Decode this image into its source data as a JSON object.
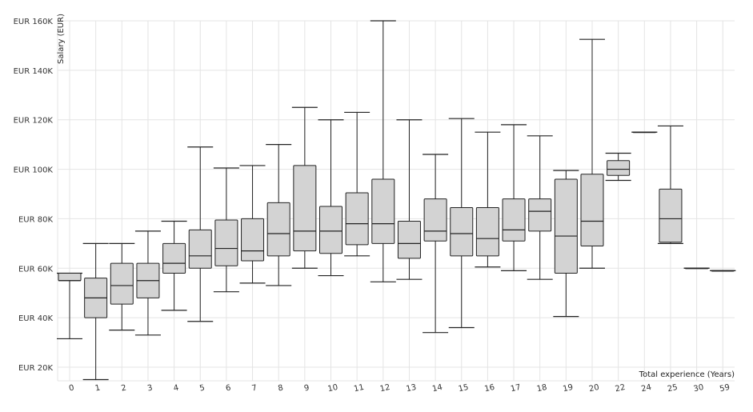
{
  "chart_data": {
    "type": "boxplot",
    "xlabel": "Total experience (Years)",
    "ylabel": "Salary (EUR)",
    "ylim": [
      15000,
      160000
    ],
    "y_ticks": [
      20000,
      40000,
      60000,
      80000,
      100000,
      120000,
      140000,
      160000
    ],
    "y_tick_labels": [
      "EUR 20K",
      "EUR 40K",
      "EUR 60K",
      "EUR 80K",
      "EUR 100K",
      "EUR 120K",
      "EUR 140K",
      "EUR 160K"
    ],
    "grid": true,
    "colors": {
      "box_fill": "#d3d3d3",
      "stroke": "#222222",
      "grid": "#e4e4e4",
      "text": "#333333"
    },
    "categories": [
      "0",
      "1",
      "2",
      "3",
      "4",
      "5",
      "6",
      "7",
      "8",
      "9",
      "10",
      "11",
      "12",
      "13",
      "14",
      "15",
      "16",
      "17",
      "18",
      "19",
      "20",
      "22",
      "24",
      "25",
      "30",
      "59"
    ],
    "boxes": [
      {
        "min": 31500,
        "q1": 55000,
        "median": 55000,
        "q3": 58000,
        "max": 58000
      },
      {
        "min": 15000,
        "q1": 40000,
        "median": 48000,
        "q3": 56000,
        "max": 70000
      },
      {
        "min": 35000,
        "q1": 45500,
        "median": 53000,
        "q3": 62000,
        "max": 70000
      },
      {
        "min": 33000,
        "q1": 48000,
        "median": 55000,
        "q3": 62000,
        "max": 75000
      },
      {
        "min": 43000,
        "q1": 58000,
        "median": 62000,
        "q3": 70000,
        "max": 79000
      },
      {
        "min": 38500,
        "q1": 60000,
        "median": 65000,
        "q3": 75500,
        "max": 109000
      },
      {
        "min": 50500,
        "q1": 61000,
        "median": 68000,
        "q3": 79500,
        "max": 100500
      },
      {
        "min": 54000,
        "q1": 63000,
        "median": 67000,
        "q3": 80000,
        "max": 101500
      },
      {
        "min": 53000,
        "q1": 65000,
        "median": 74000,
        "q3": 86500,
        "max": 110000
      },
      {
        "min": 60000,
        "q1": 67000,
        "median": 75000,
        "q3": 101500,
        "max": 125000
      },
      {
        "min": 57000,
        "q1": 66000,
        "median": 75000,
        "q3": 85000,
        "max": 120000
      },
      {
        "min": 65000,
        "q1": 69500,
        "median": 78000,
        "q3": 90500,
        "max": 123000
      },
      {
        "min": 54500,
        "q1": 70000,
        "median": 78000,
        "q3": 96000,
        "max": 160000
      },
      {
        "min": 55500,
        "q1": 64000,
        "median": 70000,
        "q3": 79000,
        "max": 120000
      },
      {
        "min": 34000,
        "q1": 71000,
        "median": 75000,
        "q3": 88000,
        "max": 106000
      },
      {
        "min": 36000,
        "q1": 65000,
        "median": 74000,
        "q3": 84500,
        "max": 120500
      },
      {
        "min": 60500,
        "q1": 65000,
        "median": 72000,
        "q3": 84500,
        "max": 115000
      },
      {
        "min": 59000,
        "q1": 71000,
        "median": 75500,
        "q3": 88000,
        "max": 118000
      },
      {
        "min": 55500,
        "q1": 75000,
        "median": 83000,
        "q3": 88000,
        "max": 113500
      },
      {
        "min": 40500,
        "q1": 58000,
        "median": 73000,
        "q3": 96000,
        "max": 99500
      },
      {
        "min": 60000,
        "q1": 69000,
        "median": 79000,
        "q3": 98000,
        "max": 152500
      },
      {
        "min": 95500,
        "q1": 97500,
        "median": 100000,
        "q3": 103500,
        "max": 106500
      },
      {
        "min": 115000,
        "q1": 115000,
        "median": 115000,
        "q3": 115000,
        "max": 115000
      },
      {
        "min": 70000,
        "q1": 70500,
        "median": 80000,
        "q3": 92000,
        "max": 117500
      },
      {
        "min": 60000,
        "q1": 60000,
        "median": 60000,
        "q3": 60000,
        "max": 60000
      },
      {
        "min": 59000,
        "q1": 59000,
        "median": 59000,
        "q3": 59000,
        "max": 59000
      }
    ]
  }
}
